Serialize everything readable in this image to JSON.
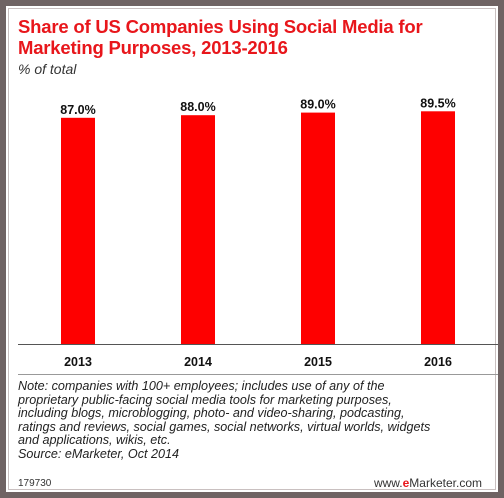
{
  "chart_data": {
    "type": "bar",
    "title": "Share of US Companies Using Social Media for Marketing Purposes, 2013-2016",
    "title_lines": [
      "Share of US Companies Using Social Media for",
      "Marketing Purposes, 2013-2016"
    ],
    "subtitle": "% of total",
    "categories": [
      "2013",
      "2014",
      "2015",
      "2016"
    ],
    "values": [
      87.0,
      88.0,
      89.0,
      89.5
    ],
    "value_labels": [
      "87.0%",
      "88.0%",
      "89.0%",
      "89.5%"
    ],
    "ylim": [
      0,
      100
    ],
    "grid": false,
    "bar_color": "#fe0000"
  },
  "notes": {
    "lines": [
      "Note: companies with 100+ employees; includes use of any of the",
      "proprietary public-facing social media tools for marketing purposes,",
      "including blogs, microblogging, photo- and video-sharing, podcasting,",
      "ratings and reviews, social games, social networks, virtual worlds, widgets",
      "and applications, wikis, etc.",
      "Source: eMarketer, Oct 2014"
    ],
    "chart_id": "179730"
  },
  "brand": {
    "prefix": "www.",
    "highlight": "e",
    "name": "Marketer",
    "suffix": ".com"
  }
}
